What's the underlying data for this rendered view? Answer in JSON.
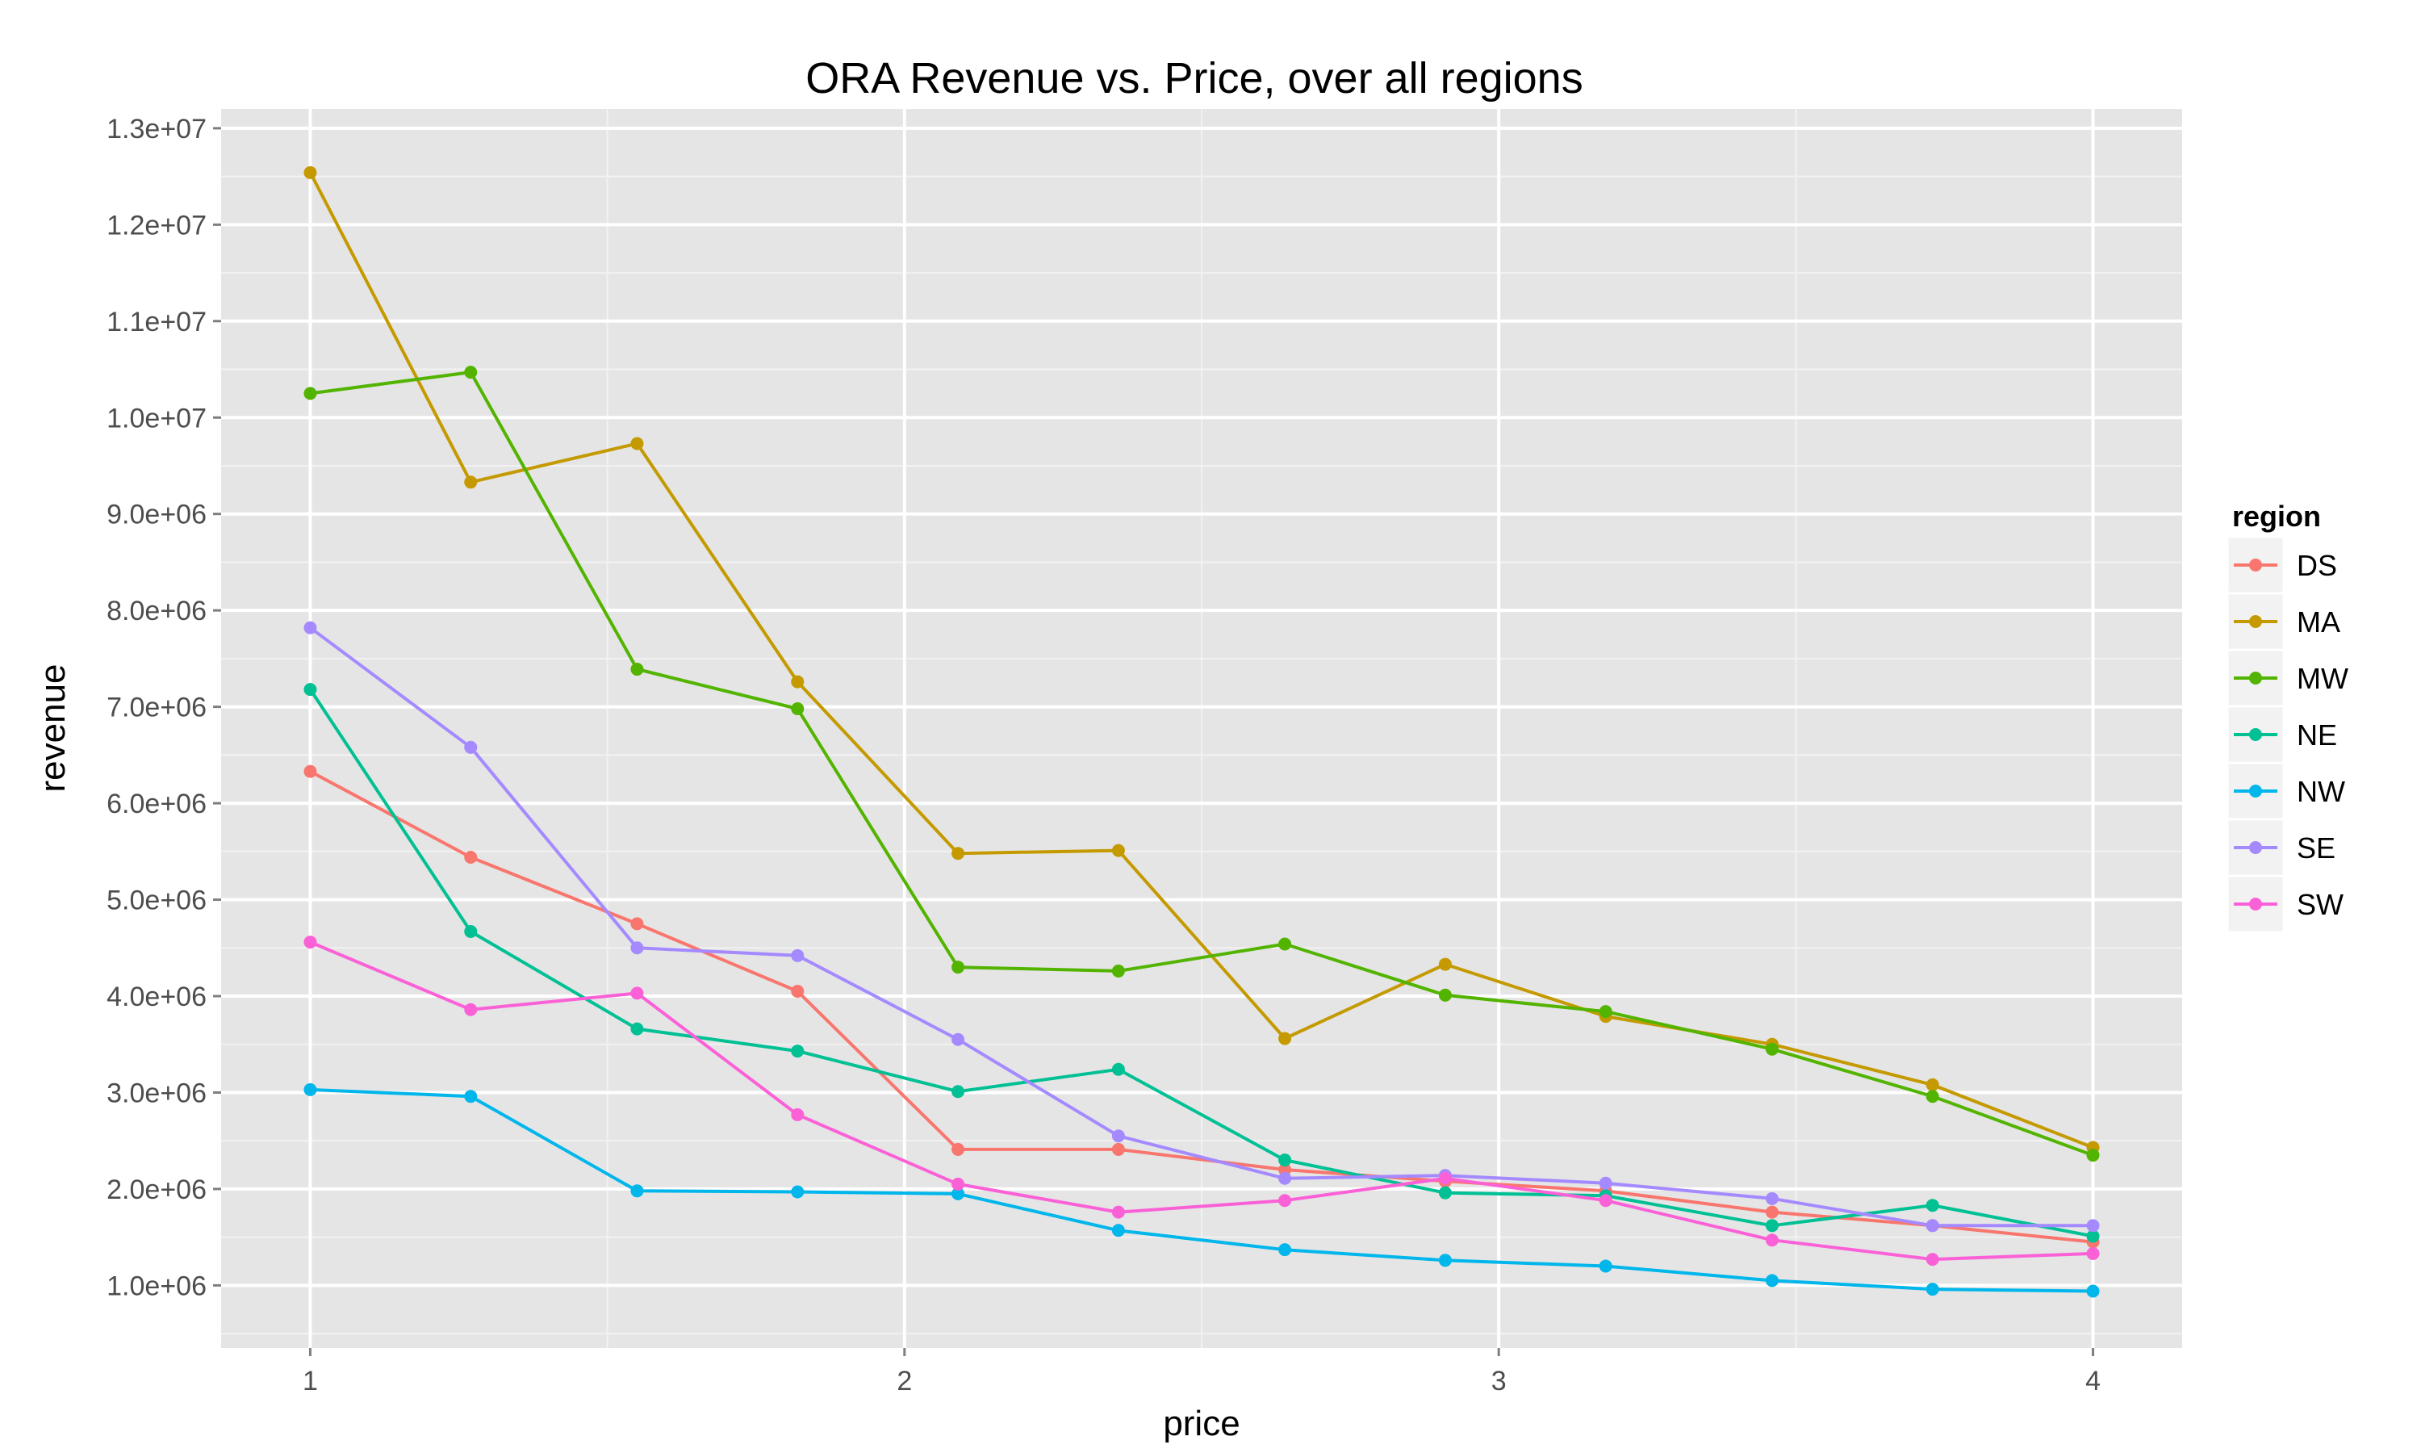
{
  "chart_data": {
    "type": "line",
    "title": "ORA Revenue vs. Price, over all regions",
    "xlabel": "price",
    "ylabel": "revenue",
    "xlim": [
      0.85,
      4.15
    ],
    "ylim": [
      350000,
      13200000
    ],
    "x_ticks": [
      {
        "value": 1,
        "label": "1"
      },
      {
        "value": 2,
        "label": "2"
      },
      {
        "value": 3,
        "label": "3"
      },
      {
        "value": 4,
        "label": "4"
      }
    ],
    "y_ticks": [
      {
        "value": 1000000,
        "label": "1.0e+06"
      },
      {
        "value": 2000000,
        "label": "2.0e+06"
      },
      {
        "value": 3000000,
        "label": "3.0e+06"
      },
      {
        "value": 4000000,
        "label": "4.0e+06"
      },
      {
        "value": 5000000,
        "label": "5.0e+06"
      },
      {
        "value": 6000000,
        "label": "6.0e+06"
      },
      {
        "value": 7000000,
        "label": "7.0e+06"
      },
      {
        "value": 8000000,
        "label": "8.0e+06"
      },
      {
        "value": 9000000,
        "label": "9.0e+06"
      },
      {
        "value": 10000000,
        "label": "1.0e+07"
      },
      {
        "value": 11000000,
        "label": "1.1e+07"
      },
      {
        "value": 12000000,
        "label": "1.2e+07"
      },
      {
        "value": 13000000,
        "label": "1.3e+07"
      }
    ],
    "grid": true,
    "legend": {
      "title": "region",
      "position": "right"
    },
    "x": [
      1.0,
      1.27,
      1.55,
      1.82,
      2.09,
      2.36,
      2.64,
      2.91,
      3.18,
      3.46,
      3.73,
      4.0
    ],
    "series": [
      {
        "name": "DS",
        "color": "#F8766D",
        "values": [
          6330000,
          5440000,
          4750000,
          4050000,
          2410000,
          2410000,
          2200000,
          2080000,
          1980000,
          1760000,
          1620000,
          1450000
        ]
      },
      {
        "name": "MA",
        "color": "#C49A00",
        "values": [
          12540000,
          9330000,
          9730000,
          7260000,
          5480000,
          5510000,
          3560000,
          4330000,
          3790000,
          3500000,
          3080000,
          2430000
        ]
      },
      {
        "name": "MW",
        "color": "#53B400",
        "values": [
          10250000,
          10470000,
          7390000,
          6980000,
          4300000,
          4260000,
          4540000,
          4010000,
          3840000,
          3450000,
          2960000,
          2350000
        ]
      },
      {
        "name": "NE",
        "color": "#00C094",
        "values": [
          7180000,
          4670000,
          3660000,
          3430000,
          3010000,
          3240000,
          2300000,
          1960000,
          1930000,
          1620000,
          1830000,
          1510000
        ]
      },
      {
        "name": "NW",
        "color": "#00B6EB",
        "values": [
          3030000,
          2960000,
          1980000,
          1970000,
          1950000,
          1570000,
          1370000,
          1260000,
          1200000,
          1050000,
          960000,
          940000
        ]
      },
      {
        "name": "SE",
        "color": "#A58AFF",
        "values": [
          7820000,
          6580000,
          4500000,
          4420000,
          3550000,
          2550000,
          2110000,
          2140000,
          2060000,
          1900000,
          1620000,
          1620000
        ]
      },
      {
        "name": "SW",
        "color": "#FB61D7",
        "values": [
          4560000,
          3860000,
          4030000,
          2770000,
          2050000,
          1760000,
          1880000,
          2110000,
          1880000,
          1470000,
          1270000,
          1330000
        ]
      }
    ]
  }
}
